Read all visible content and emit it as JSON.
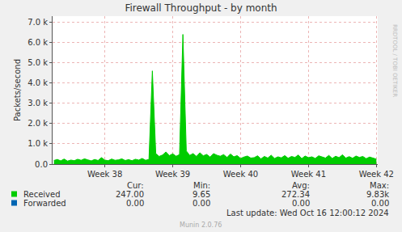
{
  "chart_data": {
    "type": "area",
    "title": "Firewall Throughput - by month",
    "ylabel": "Packets/second",
    "x": [
      37.25,
      37.3,
      37.35,
      37.4,
      37.45,
      37.5,
      37.55,
      37.6,
      37.65,
      37.7,
      37.75,
      37.8,
      37.85,
      37.9,
      37.95,
      38.0,
      38.05,
      38.1,
      38.15,
      38.2,
      38.25,
      38.3,
      38.35,
      38.4,
      38.45,
      38.5,
      38.55,
      38.6,
      38.65,
      38.7,
      38.75,
      38.8,
      38.85,
      38.9,
      38.95,
      39.0,
      39.05,
      39.1,
      39.15,
      39.2,
      39.25,
      39.3,
      39.35,
      39.4,
      39.45,
      39.5,
      39.55,
      39.6,
      39.65,
      39.7,
      39.75,
      39.8,
      39.85,
      39.9,
      39.95,
      40.0,
      40.05,
      40.1,
      40.15,
      40.2,
      40.25,
      40.3,
      40.35,
      40.4,
      40.45,
      40.5,
      40.55,
      40.6,
      40.65,
      40.7,
      40.75,
      40.8,
      40.85,
      40.9,
      40.95,
      41.0,
      41.05,
      41.1,
      41.15,
      41.2,
      41.25,
      41.3,
      41.35,
      41.4,
      41.45,
      41.5,
      41.55,
      41.6,
      41.65,
      41.7,
      41.75,
      41.8,
      41.85,
      41.9,
      41.95,
      42.0
    ],
    "xlim": [
      37.23,
      42.02
    ],
    "xticks": [
      {
        "value": 38,
        "label": "Week 38"
      },
      {
        "value": 39,
        "label": "Week 39"
      },
      {
        "value": 40,
        "label": "Week 40"
      },
      {
        "value": 41,
        "label": "Week 41"
      },
      {
        "value": 42,
        "label": "Week 42"
      }
    ],
    "ylim": [
      0,
      7300
    ],
    "yticks": [
      {
        "value": 0,
        "label": "0.0"
      },
      {
        "value": 1000,
        "label": "1.0 k"
      },
      {
        "value": 2000,
        "label": "2.0 k"
      },
      {
        "value": 3000,
        "label": "3.0 k"
      },
      {
        "value": 4000,
        "label": "4.0 k"
      },
      {
        "value": 5000,
        "label": "5.0 k"
      },
      {
        "value": 6000,
        "label": "6.0 k"
      },
      {
        "value": 7000,
        "label": "7.0 k"
      }
    ],
    "grid": true,
    "stat_headers": [
      "Cur:",
      "Min:",
      "Avg:",
      "Max:"
    ],
    "series": [
      {
        "name": "Received",
        "color": "#00cc00",
        "values": [
          180,
          230,
          160,
          250,
          150,
          200,
          170,
          240,
          190,
          260,
          210,
          160,
          230,
          180,
          320,
          200,
          170,
          250,
          190,
          210,
          260,
          180,
          220,
          170,
          240,
          200,
          280,
          190,
          230,
          4600,
          520,
          380,
          450,
          600,
          420,
          510,
          390,
          470,
          6400,
          650,
          430,
          520,
          380,
          560,
          410,
          480,
          350,
          520,
          440,
          390,
          470,
          330,
          500,
          360,
          420,
          280,
          350,
          400,
          300,
          320,
          410,
          260,
          380,
          300,
          440,
          280,
          360,
          310,
          420,
          290,
          380,
          330,
          450,
          270,
          400,
          320,
          360,
          280,
          410,
          350,
          300,
          430,
          280,
          390,
          320,
          460,
          300,
          370,
          290,
          400,
          330,
          380,
          270,
          350,
          300,
          247
        ],
        "stats": [
          {
            "value": 247,
            "label": "247.00"
          },
          {
            "value": 9.65,
            "label": "9.65"
          },
          {
            "value": 272.34,
            "label": "272.34"
          },
          {
            "value": 9830,
            "label": "9.83k"
          }
        ]
      },
      {
        "name": "Forwarded",
        "color": "#0066b3",
        "values": [
          0,
          0,
          0,
          0,
          0,
          0,
          0,
          0,
          0,
          0,
          0,
          0,
          0,
          0,
          0,
          0,
          0,
          0,
          0,
          0,
          0,
          0,
          0,
          0,
          0,
          0,
          0,
          0,
          0,
          0,
          0,
          0,
          0,
          0,
          0,
          0,
          0,
          0,
          0,
          0,
          0,
          0,
          0,
          0,
          0,
          0,
          0,
          0,
          0,
          0,
          0,
          0,
          0,
          0,
          0,
          0,
          0,
          0,
          0,
          0,
          0,
          0,
          0,
          0,
          0,
          0,
          0,
          0,
          0,
          0,
          0,
          0,
          0,
          0,
          0,
          0,
          0,
          0,
          0,
          0,
          0,
          0,
          0,
          0,
          0,
          0,
          0,
          0,
          0,
          0,
          0,
          0,
          0,
          0,
          0,
          0
        ],
        "stats": [
          {
            "value": 0,
            "label": "0.00"
          },
          {
            "value": 0,
            "label": "0.00"
          },
          {
            "value": 0,
            "label": "0.00"
          },
          {
            "value": 0,
            "label": "0.00"
          }
        ]
      }
    ],
    "annotations": [
      "Last update: Wed Oct 16 12:00:12 2024",
      "Munin 2.0.76",
      "RRDTOOL / TOBI OETIKER"
    ]
  }
}
